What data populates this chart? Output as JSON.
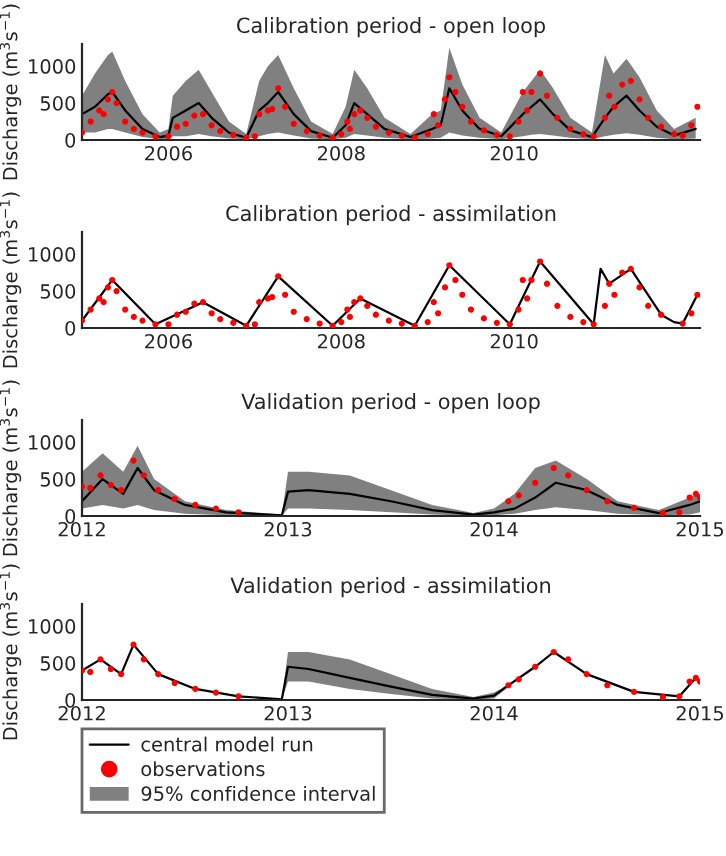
{
  "chart_data": [
    {
      "type": "line",
      "title": "Calibration period - open loop",
      "ylabel": "Discharge (m$^{3}$s$^{−1}$)",
      "xlim": [
        2005,
        2012.15
      ],
      "xticks": [
        2006,
        2008,
        2010
      ],
      "ylim": [
        0,
        1300
      ],
      "yticks": [
        0,
        500,
        1000
      ],
      "grid": false,
      "legend": false,
      "series": [
        {
          "color": "#000000",
          "x": [
            2005.0,
            2005.15,
            2005.3,
            2005.35,
            2005.5,
            2005.7,
            2005.9,
            2006.0,
            2006.05,
            2006.2,
            2006.35,
            2006.5,
            2006.7,
            2006.9,
            2007.05,
            2007.15,
            2007.27,
            2007.45,
            2007.65,
            2007.9,
            2008.05,
            2008.15,
            2008.3,
            2008.5,
            2008.8,
            2009.05,
            2009.15,
            2009.25,
            2009.4,
            2009.6,
            2009.85,
            2010.1,
            2010.2,
            2010.3,
            2010.45,
            2010.65,
            2010.9,
            2011.05,
            2011.15,
            2011.3,
            2011.45,
            2011.65,
            2011.85,
            2012.1
          ],
          "values": [
            350,
            450,
            620,
            650,
            400,
            150,
            40,
            60,
            300,
            400,
            500,
            300,
            100,
            30,
            400,
            500,
            650,
            350,
            120,
            30,
            200,
            500,
            350,
            150,
            40,
            150,
            200,
            700,
            400,
            150,
            50,
            350,
            450,
            550,
            350,
            130,
            40,
            300,
            450,
            600,
            400,
            180,
            60,
            150
          ],
          "lower": [
            100,
            100,
            150,
            150,
            100,
            40,
            10,
            10,
            50,
            50,
            80,
            50,
            20,
            10,
            50,
            80,
            100,
            60,
            20,
            10,
            30,
            80,
            60,
            30,
            10,
            20,
            30,
            100,
            60,
            30,
            10,
            50,
            70,
            80,
            60,
            30,
            10,
            50,
            70,
            90,
            70,
            30,
            10,
            20
          ],
          "upper": [
            600,
            900,
            1150,
            1200,
            800,
            350,
            100,
            150,
            600,
            800,
            950,
            650,
            250,
            80,
            800,
            1000,
            1150,
            700,
            250,
            80,
            450,
            950,
            700,
            300,
            80,
            350,
            400,
            1250,
            750,
            300,
            100,
            650,
            800,
            950,
            700,
            300,
            100,
            1150,
            900,
            1100,
            850,
            400,
            150,
            300
          ]
        },
        {
          "type": "scatter",
          "color": "#ff0000",
          "marker": "circle",
          "x": [
            2005.0,
            2005.1,
            2005.2,
            2005.25,
            2005.3,
            2005.35,
            2005.4,
            2005.5,
            2005.6,
            2005.7,
            2005.85,
            2006.0,
            2006.1,
            2006.2,
            2006.3,
            2006.4,
            2006.5,
            2006.6,
            2006.75,
            2006.9,
            2007.0,
            2007.05,
            2007.15,
            2007.2,
            2007.27,
            2007.35,
            2007.45,
            2007.6,
            2007.75,
            2007.9,
            2008.0,
            2008.07,
            2008.1,
            2008.15,
            2008.22,
            2008.3,
            2008.4,
            2008.55,
            2008.7,
            2008.85,
            2009.0,
            2009.07,
            2009.12,
            2009.2,
            2009.25,
            2009.32,
            2009.4,
            2009.5,
            2009.65,
            2009.8,
            2009.95,
            2010.05,
            2010.1,
            2010.15,
            2010.2,
            2010.3,
            2010.38,
            2010.5,
            2010.65,
            2010.8,
            2010.92,
            2011.05,
            2011.1,
            2011.16,
            2011.25,
            2011.35,
            2011.45,
            2011.55,
            2011.7,
            2011.85,
            2011.95,
            2012.05,
            2012.12
          ],
          "values": [
            100,
            250,
            400,
            350,
            550,
            650,
            500,
            250,
            150,
            100,
            50,
            50,
            180,
            220,
            330,
            350,
            200,
            120,
            70,
            30,
            50,
            350,
            400,
            420,
            700,
            450,
            220,
            120,
            60,
            30,
            80,
            250,
            150,
            350,
            400,
            300,
            180,
            100,
            60,
            30,
            80,
            350,
            200,
            550,
            850,
            650,
            450,
            250,
            130,
            70,
            50,
            250,
            650,
            400,
            650,
            900,
            600,
            300,
            150,
            80,
            50,
            300,
            600,
            450,
            750,
            800,
            550,
            300,
            180,
            80,
            60,
            200,
            450
          ]
        }
      ]
    },
    {
      "type": "line",
      "title": "Calibration period - assimilation",
      "ylabel": "Discharge (m$^{3}$s$^{−1}$)",
      "xlim": [
        2005,
        2012.15
      ],
      "xticks": [
        2006,
        2008,
        2010
      ],
      "ylim": [
        0,
        1300
      ],
      "yticks": [
        0,
        500,
        1000
      ],
      "grid": false,
      "legend": false,
      "series": [
        {
          "color": "#000000",
          "x": [
            2005.0,
            2005.35,
            2005.85,
            2006.4,
            2006.9,
            2007.27,
            2007.9,
            2008.22,
            2008.85,
            2009.25,
            2009.95,
            2010.3,
            2010.92,
            2011.0,
            2011.1,
            2011.35,
            2011.7,
            2011.85,
            2011.95,
            2012.12
          ],
          "values": [
            100,
            650,
            50,
            350,
            30,
            700,
            30,
            400,
            30,
            850,
            50,
            900,
            50,
            800,
            600,
            800,
            180,
            80,
            60,
            450
          ]
        },
        {
          "type": "scatter",
          "color": "#ff0000",
          "marker": "circle",
          "x": [
            2005.0,
            2005.1,
            2005.2,
            2005.25,
            2005.3,
            2005.35,
            2005.4,
            2005.5,
            2005.6,
            2005.7,
            2005.85,
            2006.0,
            2006.1,
            2006.2,
            2006.3,
            2006.4,
            2006.5,
            2006.6,
            2006.75,
            2006.9,
            2007.0,
            2007.05,
            2007.15,
            2007.2,
            2007.27,
            2007.35,
            2007.45,
            2007.6,
            2007.75,
            2007.9,
            2008.0,
            2008.07,
            2008.1,
            2008.15,
            2008.22,
            2008.3,
            2008.4,
            2008.55,
            2008.7,
            2008.85,
            2009.0,
            2009.07,
            2009.12,
            2009.2,
            2009.25,
            2009.32,
            2009.4,
            2009.5,
            2009.65,
            2009.8,
            2009.95,
            2010.05,
            2010.1,
            2010.15,
            2010.2,
            2010.3,
            2010.38,
            2010.5,
            2010.65,
            2010.8,
            2010.92,
            2011.05,
            2011.1,
            2011.16,
            2011.25,
            2011.35,
            2011.45,
            2011.55,
            2011.7,
            2011.95,
            2012.05,
            2012.12
          ],
          "values": [
            100,
            250,
            400,
            350,
            550,
            650,
            500,
            250,
            150,
            100,
            50,
            50,
            180,
            220,
            330,
            350,
            200,
            120,
            70,
            30,
            50,
            350,
            400,
            420,
            700,
            450,
            220,
            120,
            60,
            30,
            80,
            250,
            150,
            350,
            400,
            300,
            180,
            100,
            60,
            30,
            80,
            350,
            200,
            550,
            850,
            650,
            450,
            250,
            130,
            70,
            50,
            250,
            650,
            400,
            650,
            900,
            600,
            300,
            150,
            80,
            50,
            300,
            600,
            450,
            750,
            800,
            550,
            300,
            180,
            60,
            200,
            450
          ]
        }
      ]
    },
    {
      "type": "line",
      "title": "Validation period - open loop",
      "ylabel": "Discharge (m$^{3}$s$^{−1}$)",
      "xlim": [
        2012,
        2015
      ],
      "xticks": [
        2012,
        2013,
        2014,
        2015
      ],
      "ylim": [
        0,
        1300
      ],
      "yticks": [
        0,
        500,
        1000
      ],
      "grid": false,
      "legend": false,
      "series": [
        {
          "color": "#000000",
          "x": [
            2012.0,
            2012.1,
            2012.2,
            2012.27,
            2012.35,
            2012.5,
            2012.7,
            2012.97,
            2013.0,
            2013.1,
            2013.3,
            2013.5,
            2013.7,
            2013.9,
            2014.0,
            2014.1,
            2014.2,
            2014.3,
            2014.45,
            2014.6,
            2014.8,
            2014.95,
            2015.0
          ],
          "values": [
            200,
            500,
            300,
            650,
            350,
            150,
            50,
            10,
            330,
            350,
            300,
            200,
            80,
            20,
            50,
            100,
            250,
            450,
            350,
            150,
            40,
            150,
            200
          ],
          "lower": [
            100,
            150,
            100,
            150,
            80,
            30,
            10,
            0,
            100,
            100,
            80,
            50,
            20,
            5,
            10,
            30,
            80,
            120,
            80,
            30,
            10,
            20,
            50
          ],
          "upper": [
            600,
            850,
            600,
            950,
            500,
            200,
            80,
            20,
            600,
            600,
            550,
            350,
            150,
            40,
            100,
            300,
            650,
            750,
            500,
            200,
            80,
            250,
            300
          ]
        },
        {
          "type": "scatter",
          "color": "#ff0000",
          "marker": "circle",
          "x": [
            2012.0,
            2012.04,
            2012.09,
            2012.14,
            2012.19,
            2012.25,
            2012.3,
            2012.37,
            2012.45,
            2012.55,
            2012.65,
            2012.76,
            2014.07,
            2014.12,
            2014.2,
            2014.29,
            2014.36,
            2014.45,
            2014.55,
            2014.68,
            2014.82,
            2014.9,
            2014.95,
            2014.98,
            2015.0
          ],
          "values": [
            400,
            380,
            550,
            420,
            350,
            750,
            550,
            350,
            230,
            150,
            100,
            50,
            200,
            280,
            450,
            650,
            550,
            350,
            200,
            110,
            40,
            50,
            250,
            300,
            250
          ]
        }
      ]
    },
    {
      "type": "line",
      "title": "Validation period - assimilation",
      "ylabel": "Discharge (m$^{3}$s$^{−1}$)",
      "xlim": [
        2012,
        2015
      ],
      "xticks": [
        2012,
        2013,
        2014,
        2015
      ],
      "ylim": [
        0,
        1300
      ],
      "yticks": [
        0,
        500,
        1000
      ],
      "grid": false,
      "legend": "bottom",
      "annotations": [
        "95% confidence interval"
      ],
      "series": [
        {
          "name": "central model run",
          "color": "#000000",
          "x": [
            2012.0,
            2012.09,
            2012.19,
            2012.25,
            2012.37,
            2012.55,
            2012.76,
            2012.97,
            2013.0,
            2013.1,
            2013.3,
            2013.5,
            2013.7,
            2013.9,
            2014.0,
            2014.07,
            2014.2,
            2014.29,
            2014.45,
            2014.68,
            2014.9,
            2014.98,
            2015.0
          ],
          "values": [
            400,
            550,
            350,
            750,
            350,
            150,
            50,
            10,
            450,
            420,
            300,
            180,
            70,
            20,
            60,
            200,
            450,
            650,
            350,
            110,
            50,
            300,
            250
          ],
          "lower": [
            null,
            null,
            null,
            null,
            null,
            null,
            null,
            5,
            250,
            250,
            150,
            80,
            20,
            5,
            20,
            180,
            null,
            null,
            null,
            null,
            null,
            null,
            null
          ],
          "upper": [
            null,
            null,
            null,
            null,
            null,
            null,
            null,
            20,
            650,
            650,
            550,
            350,
            150,
            40,
            100,
            200,
            null,
            null,
            null,
            null,
            null,
            null,
            null
          ]
        },
        {
          "type": "scatter",
          "name": "observations",
          "color": "#ff0000",
          "marker": "circle",
          "x": [
            2012.0,
            2012.04,
            2012.09,
            2012.14,
            2012.19,
            2012.25,
            2012.3,
            2012.37,
            2012.45,
            2012.55,
            2012.65,
            2012.76,
            2014.07,
            2014.12,
            2014.2,
            2014.29,
            2014.36,
            2014.45,
            2014.55,
            2014.68,
            2014.82,
            2014.9,
            2014.95,
            2014.98,
            2015.0
          ],
          "values": [
            400,
            380,
            550,
            420,
            350,
            750,
            550,
            350,
            230,
            150,
            100,
            50,
            200,
            280,
            450,
            650,
            550,
            350,
            200,
            110,
            40,
            50,
            250,
            300,
            250
          ]
        }
      ]
    }
  ]
}
